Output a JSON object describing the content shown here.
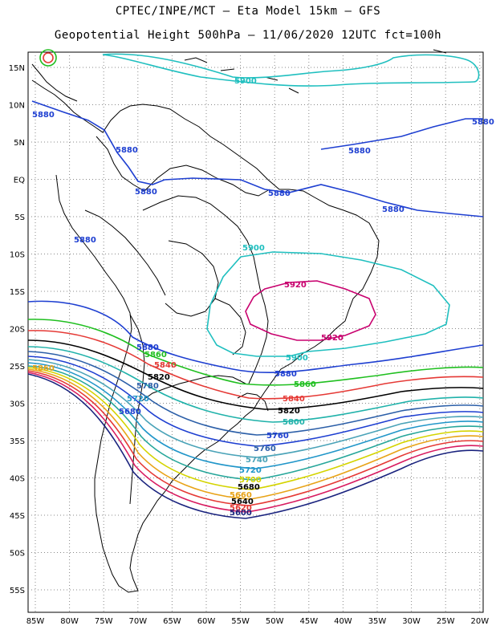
{
  "header": {
    "line1": "CPTEC/INPE/MCT –  Eta Model 15km – GFS",
    "line2": "Geopotential Height 500hPa – 11/06/2020 12UTC fct=100h"
  },
  "axes": {
    "lat_labels": [
      "15N",
      "10N",
      "5N",
      "EQ",
      "5S",
      "10S",
      "15S",
      "20S",
      "25S",
      "30S",
      "35S",
      "40S",
      "45S",
      "50S",
      "55S"
    ],
    "lon_labels": [
      "85W",
      "80W",
      "75W",
      "70W",
      "65W",
      "60W",
      "55W",
      "50W",
      "45W",
      "40W",
      "35W",
      "30W",
      "25W",
      "20W"
    ]
  },
  "contours": [
    {
      "value": "5600",
      "color": "#1a237e"
    },
    {
      "value": "5620",
      "color": "#d81b60"
    },
    {
      "value": "5640",
      "color": "#e53935"
    },
    {
      "value": "5660",
      "color": "#e8a317"
    },
    {
      "value": "5680",
      "color": "#d4d400"
    },
    {
      "value": "5700",
      "color": "#26a69a"
    },
    {
      "value": "5720",
      "color": "#2196c9"
    },
    {
      "value": "5740",
      "color": "#4aa3b8"
    },
    {
      "value": "5760",
      "color": "#1e3fd1"
    },
    {
      "value": "5780",
      "color": "#2c5fa8"
    },
    {
      "value": "5800",
      "color": "#20b2aa"
    },
    {
      "value": "5820",
      "color": "#000000"
    },
    {
      "value": "5840",
      "color": "#e53935"
    },
    {
      "value": "5860",
      "color": "#1fbf1f"
    },
    {
      "value": "5880",
      "color": "#1e3fd1"
    },
    {
      "value": "5900",
      "color": "#1fbfbf"
    },
    {
      "value": "5920",
      "color": "#c8006e"
    }
  ],
  "labels": {
    "l5900a": "5900",
    "l5880a": "5880",
    "l5880b": "5880",
    "l5880c": "5880",
    "l5880d": "5880",
    "l5880e": "5880",
    "l5880f": "5880",
    "l5880g": "5880",
    "l5880h": "5880",
    "l5880i": "5880",
    "l5900b": "5900",
    "l5900c": "5900",
    "l5920a": "5920",
    "l5920b": "5920",
    "l5860a": "5860",
    "l5860b": "5860",
    "l5840a": "5840",
    "l5840b": "5840",
    "l5820a": "5820",
    "l5820b": "5820",
    "l5800": "5800",
    "l5780": "5780",
    "l5760": "5760",
    "l5740": "5740",
    "l5720a": "5720",
    "l5720b": "5720",
    "l5700": "5700",
    "l5680a": "5680",
    "l5680b": "5680",
    "l5660": "5660",
    "l5640": "5640",
    "l5620": "5620",
    "l5600": "5600",
    "l5860w": "5860"
  }
}
